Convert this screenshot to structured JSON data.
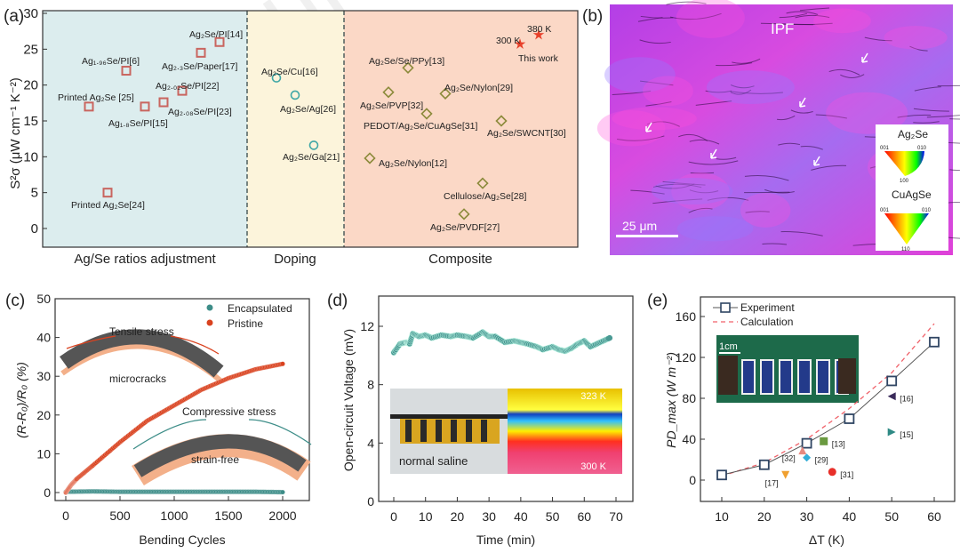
{
  "watermark": "Journal Pre-proof",
  "colors": {
    "group_ratio_bg": "#dcedee",
    "group_doping_bg": "#fcf4db",
    "group_composite_bg": "#fbd8c6",
    "square": "#c9655f",
    "circle": "#3fa7a6",
    "diamond": "#8b8a3a",
    "star": "#e8402a",
    "encapsulated": "#3d8d88",
    "pristine": "#d9421f",
    "experiment": "#2f4563",
    "calculation": "#f0626a",
    "ipf": "#c43fe0"
  },
  "chart_data": [
    {
      "panel_label": "(a)",
      "type": "scatter",
      "ylabel": "S²σ (μW cm⁻¹ K⁻²)",
      "ylim": [
        -2.5,
        30
      ],
      "yticks": [
        "0",
        "5",
        "10",
        "15",
        "20",
        "25",
        "30"
      ],
      "groups": [
        "Ag/Se ratios adjustment",
        "Doping",
        "Composite"
      ],
      "points": [
        {
          "label": "Printed Ag₂Se [25]",
          "group": "Ag/Se ratios adjustment",
          "marker": "square",
          "y": 17
        },
        {
          "label": "Ag₁.₉₆Se/PI[6]",
          "group": "Ag/Se ratios adjustment",
          "marker": "square",
          "y": 22
        },
        {
          "label": "Ag₁.₈Se/PI[15]",
          "group": "Ag/Se ratios adjustment",
          "marker": "square",
          "y": 17
        },
        {
          "label": "Ag₂.₀₈Se/PI[23]",
          "group": "Ag/Se ratios adjustment",
          "marker": "square",
          "y": 17.6
        },
        {
          "label": "Ag₂.₀₂Se/PI[22]",
          "group": "Ag/Se ratios adjustment",
          "marker": "square",
          "y": 19.2
        },
        {
          "label": "Ag₂.₃Se/Paper[17]",
          "group": "Ag/Se ratios adjustment",
          "marker": "square",
          "y": 24.5
        },
        {
          "label": "Ag₂Se/PI[14]",
          "group": "Ag/Se ratios adjustment",
          "marker": "square",
          "y": 26
        },
        {
          "label": "Printed Ag₂Se[24]",
          "group": "Ag/Se ratios adjustment",
          "marker": "square",
          "y": 5
        },
        {
          "label": "Ag₂Se/Cu[16]",
          "group": "Doping",
          "marker": "circle",
          "y": 21
        },
        {
          "label": "Ag₂Se/Ag[26]",
          "group": "Doping",
          "marker": "circle",
          "y": 18.6
        },
        {
          "label": "Ag₂Se/Ga[21]",
          "group": "Doping",
          "marker": "circle",
          "y": 11.6
        },
        {
          "label": "Ag₂Se/Nylon[12]",
          "group": "Composite",
          "marker": "diamond",
          "y": 9.8
        },
        {
          "label": "Ag₂Se/PVP[32]",
          "group": "Composite",
          "marker": "diamond",
          "y": 19
        },
        {
          "label": "Ag₂Se/Se/PPy[13]",
          "group": "Composite",
          "marker": "diamond",
          "y": 22.4
        },
        {
          "label": "PEDOT/Ag₂Se/CuAgSe[31]",
          "group": "Composite",
          "marker": "diamond",
          "y": 16
        },
        {
          "label": "Ag₂Se/Nylon[29]",
          "group": "Composite",
          "marker": "diamond",
          "y": 18.8
        },
        {
          "label": "Ag₂Se/PVDF[27]",
          "group": "Composite",
          "marker": "diamond",
          "y": 2
        },
        {
          "label": "Cellulose/Ag₂Se[28]",
          "group": "Composite",
          "marker": "diamond",
          "y": 6.3
        },
        {
          "label": "Ag₂Se/SWCNT[30]",
          "group": "Composite",
          "marker": "diamond",
          "y": 15
        },
        {
          "label": "300 K",
          "group": "Composite",
          "marker": "star",
          "y": 25.7
        },
        {
          "label": "380 K",
          "group": "Composite",
          "marker": "star",
          "y": 27
        }
      ],
      "annotation": "This work"
    },
    {
      "panel_label": "(b)",
      "type": "image",
      "title": "IPF",
      "scale_bar": "25 μm",
      "legends": [
        {
          "name": "Ag₂Se",
          "corners": [
            "001",
            "010",
            "100"
          ]
        },
        {
          "name": "CuAgSe",
          "corners": [
            "001",
            "010",
            "110"
          ]
        }
      ]
    },
    {
      "panel_label": "(c)",
      "type": "scatter",
      "xlabel": "Bending Cycles",
      "ylabel": "(R-R₀)/R₀ (%)",
      "xlim": [
        -100,
        2250
      ],
      "ylim": [
        -2,
        50
      ],
      "xticks": [
        "0",
        "500",
        "1000",
        "1500",
        "2000"
      ],
      "yticks": [
        "0",
        "10",
        "20",
        "30",
        "40",
        "50"
      ],
      "legend_position": "top-right",
      "series": [
        {
          "name": "Encapsulated",
          "x": [
            0,
            250,
            500,
            750,
            1000,
            1250,
            1500,
            1750,
            2000
          ],
          "y": [
            0.2,
            0.3,
            0.2,
            0.2,
            0.2,
            0.2,
            0.2,
            0.2,
            0.1
          ]
        },
        {
          "name": "Pristine",
          "x": [
            0,
            50,
            100,
            250,
            500,
            750,
            1000,
            1250,
            1500,
            1750,
            2000
          ],
          "y": [
            0,
            2,
            3.5,
            7,
            13,
            18.5,
            22.5,
            26.5,
            29.5,
            31.8,
            33.2
          ]
        }
      ],
      "annotations": [
        "Tensile stress",
        "microcracks",
        "Compressive stress",
        "strain-free"
      ]
    },
    {
      "panel_label": "(d)",
      "type": "scatter",
      "xlabel": "Time (min)",
      "ylabel": "Open-circuit Voltage (mV)",
      "xlim": [
        -5,
        75
      ],
      "ylim": [
        0,
        14
      ],
      "xticks": [
        "0",
        "10",
        "20",
        "30",
        "40",
        "50",
        "60",
        "70"
      ],
      "yticks": [
        "0",
        "4",
        "8",
        "12"
      ],
      "series": [
        {
          "x": [
            0,
            2,
            4,
            5,
            6,
            8,
            10,
            12,
            15,
            18,
            20,
            23,
            25,
            28,
            30,
            32,
            35,
            38,
            40,
            42,
            45,
            47,
            50,
            52,
            54,
            56,
            58,
            60,
            62,
            65,
            68
          ],
          "y": [
            10.2,
            10.8,
            10.9,
            10.8,
            11.5,
            11.3,
            11.4,
            11.2,
            11.4,
            11.3,
            11.4,
            11.3,
            11.2,
            11.6,
            11.3,
            11.3,
            10.9,
            11.0,
            10.9,
            10.8,
            10.6,
            10.4,
            10.6,
            10.4,
            10.3,
            10.5,
            10.8,
            11.0,
            10.6,
            10.9,
            11.2
          ]
        }
      ],
      "inset_labels": [
        "normal saline",
        "323 K",
        "300 K"
      ]
    },
    {
      "panel_label": "(e)",
      "type": "line",
      "xlabel": "ΔT (K)",
      "ylabel": "PD_max (W m⁻²)",
      "xlim": [
        5,
        65
      ],
      "ylim": [
        -20,
        180
      ],
      "xticks": [
        "10",
        "20",
        "30",
        "40",
        "50",
        "60"
      ],
      "yticks": [
        "0",
        "40",
        "80",
        "120",
        "160"
      ],
      "legend_position": "top-left",
      "series": [
        {
          "name": "Experiment",
          "x": [
            10,
            20,
            30,
            40,
            50,
            60
          ],
          "y": [
            5,
            15,
            36,
            60,
            97,
            135
          ]
        },
        {
          "name": "Calculation",
          "x": [
            10,
            20,
            30,
            40,
            50,
            60
          ],
          "y": [
            4,
            17,
            40,
            70,
            105,
            153
          ]
        }
      ],
      "references": [
        {
          "label": "[17]",
          "x": 25,
          "y": 5,
          "marker": "triangle-down",
          "color": "#f0a030"
        },
        {
          "label": "[32]",
          "x": 29,
          "y": 29,
          "marker": "triangle-up",
          "color": "#e88a80"
        },
        {
          "label": "[29]",
          "x": 30,
          "y": 22,
          "marker": "diamond",
          "color": "#34aed8"
        },
        {
          "label": "[13]",
          "x": 34,
          "y": 38,
          "marker": "square",
          "color": "#6a9a40"
        },
        {
          "label": "[31]",
          "x": 36,
          "y": 8,
          "marker": "circle",
          "color": "#e8302a"
        },
        {
          "label": "[16]",
          "x": 50,
          "y": 82,
          "marker": "triangle-left",
          "color": "#3a2a5a"
        },
        {
          "label": "[15]",
          "x": 50,
          "y": 47,
          "marker": "triangle-right",
          "color": "#2f8a85"
        }
      ],
      "inset_scale_bar": "1cm"
    }
  ]
}
